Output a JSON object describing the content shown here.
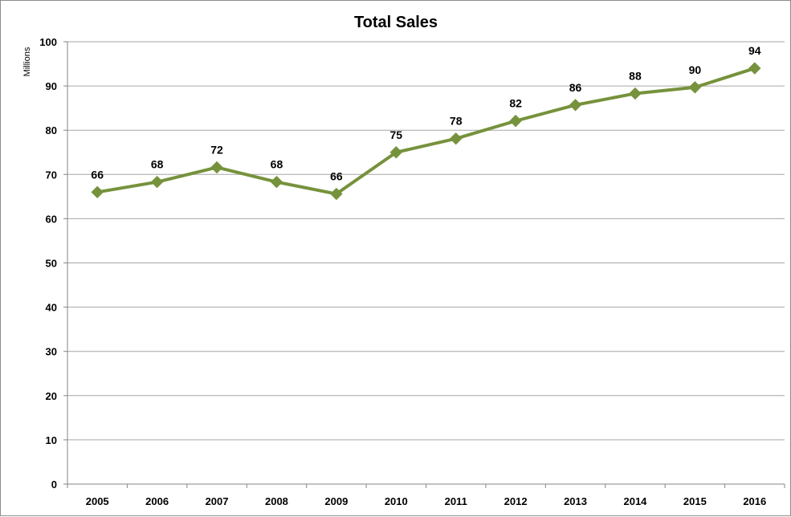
{
  "chart_data": {
    "type": "line",
    "title": "Total Sales",
    "xlabel": "",
    "ylabel": "Millions",
    "categories": [
      "2005",
      "2006",
      "2007",
      "2008",
      "2009",
      "2010",
      "2011",
      "2012",
      "2013",
      "2014",
      "2015",
      "2016"
    ],
    "series": [
      {
        "values": [
          66,
          68.3,
          71.6,
          68.3,
          65.6,
          75,
          78.1,
          82.1,
          85.7,
          88.3,
          89.7,
          94
        ],
        "labels": [
          "66",
          "68",
          "72",
          "68",
          "66",
          "75",
          "78",
          "82",
          "86",
          "88",
          "90",
          "94"
        ],
        "color": "#76923c",
        "marker": "diamond"
      }
    ],
    "ylim": [
      0,
      100
    ],
    "yticks": [
      "0",
      "10",
      "20",
      "30",
      "40",
      "50",
      "60",
      "70",
      "80",
      "90",
      "100"
    ],
    "grid": true,
    "legend": "none"
  }
}
